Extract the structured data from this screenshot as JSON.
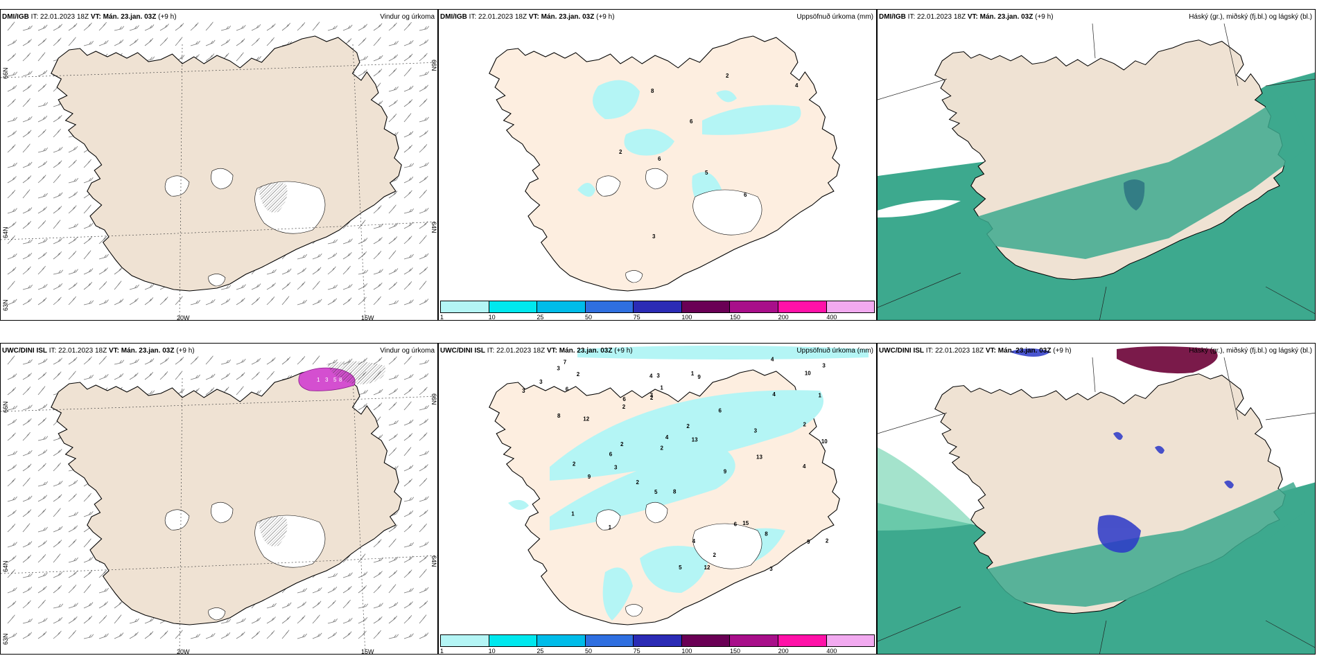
{
  "panels": [
    {
      "id": "p1",
      "model": "DMI/IGB",
      "it": "IT: 22.01.2023 18Z",
      "vt_label": "VT: Mán. 23.jan. 03Z",
      "lead": "(+9 h)",
      "title": "Vindur og úrkoma",
      "type": "wind"
    },
    {
      "id": "p2",
      "model": "DMI/IGB",
      "it": "IT: 22.01.2023 18Z",
      "vt_label": "VT: Mán. 23.jan. 03Z",
      "lead": "(+9 h)",
      "title": "Uppsöfnuð úrkoma (mm)",
      "type": "precip"
    },
    {
      "id": "p3",
      "model": "DMI/IGB",
      "it": "IT: 22.01.2023 18Z",
      "vt_label": "VT: Mán. 23.jan. 03Z",
      "lead": "(+9 h)",
      "title": "Háský (gr.), miðský (fj.bl.) og lágský (bl.)",
      "type": "cloud"
    },
    {
      "id": "p4",
      "model": "UWC/DINI ISL",
      "it": "IT: 22.01.2023 18Z",
      "vt_label": "VT: Mán. 23.jan. 03Z",
      "lead": "(+9 h)",
      "title": "Vindur og úrkoma",
      "type": "wind"
    },
    {
      "id": "p5",
      "model": "UWC/DINI ISL",
      "it": "IT: 22.01.2023 18Z",
      "vt_label": "VT: Mán. 23.jan. 03Z",
      "lead": "(+9 h)",
      "title": "Uppsöfnuð úrkoma (mm)",
      "type": "precip"
    },
    {
      "id": "p6",
      "model": "UWC/DINI ISL",
      "it": "IT: 22.01.2023 18Z",
      "vt_label": "VT: Mán. 23.jan. 03Z",
      "lead": "(+9 h)",
      "title": "Háský (gr.), miðský (fj.bl.) og lágský (bl.)",
      "type": "cloud"
    }
  ],
  "grid_labels": {
    "lat66": "66N",
    "lat64": "64N",
    "lat63": "63N",
    "lon20": "20W",
    "lon15": "15W"
  },
  "colorbar": {
    "ticks": [
      "1",
      "10",
      "25",
      "50",
      "75",
      "100",
      "150",
      "200",
      "400"
    ],
    "colors": [
      "#b4f5f5",
      "#00e8ee",
      "#00bce9",
      "#2f6fe0",
      "#2b2bb5",
      "#6a0055",
      "#a80f8a",
      "#ff11a8",
      "#f2aaf0"
    ]
  },
  "precip_labels_top": [
    "8",
    "2",
    "4",
    "6",
    "6",
    "2",
    "5",
    "6",
    "3"
  ],
  "precip_labels_bottom": [
    "2",
    "3",
    "4",
    "2",
    "2",
    "2",
    "2",
    "2",
    "2",
    "1",
    "4",
    "2",
    "2",
    "4",
    "3",
    "10",
    "5",
    "6",
    "2",
    "3",
    "13",
    "9",
    "3",
    "7",
    "6",
    "8",
    "3",
    "1",
    "2",
    "3",
    "15",
    "6",
    "4",
    "12",
    "9",
    "10",
    "4",
    "4",
    "13",
    "12",
    "9",
    "1",
    "9",
    "6",
    "8",
    "1",
    "5",
    "6",
    "3",
    "3",
    "8",
    "3",
    "1"
  ],
  "wind_precip_labels": [
    "1",
    "3",
    "5",
    "8"
  ],
  "colors": {
    "land": "#efe2d3",
    "precip_land": "#fdeee0",
    "sea_cloud": "#3da98e",
    "low_cloud_light": "#7ed7b7",
    "mid_cloud": "#2a37c8",
    "high_cloud": "#7a1a4a"
  }
}
